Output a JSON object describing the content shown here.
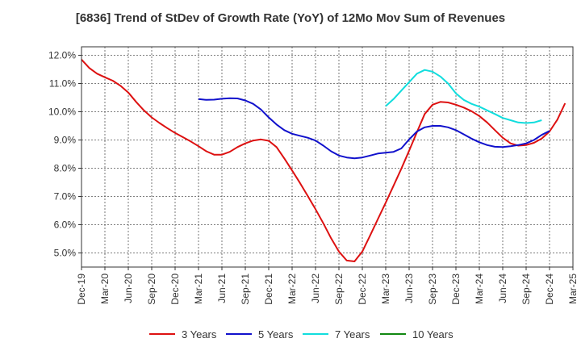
{
  "chart_data": {
    "type": "line",
    "title": "[6836]  Trend of StDev of Growth Rate (YoY) of 12Mo Mov Sum of Revenues",
    "xlabel": "",
    "ylabel": "",
    "ylim": [
      4.5,
      12.3
    ],
    "y_ticks": [
      5.0,
      6.0,
      7.0,
      8.0,
      9.0,
      10.0,
      11.0,
      12.0
    ],
    "y_tick_labels": [
      "5.0%",
      "6.0%",
      "7.0%",
      "8.0%",
      "9.0%",
      "10.0%",
      "11.0%",
      "12.0%"
    ],
    "x_tick_labels": [
      "Dec-19",
      "Mar-20",
      "Jun-20",
      "Sep-20",
      "Dec-20",
      "Mar-21",
      "Jun-21",
      "Sep-21",
      "Dec-21",
      "Mar-22",
      "Jun-22",
      "Sep-22",
      "Dec-22",
      "Mar-23",
      "Jun-23",
      "Sep-23",
      "Dec-23",
      "Mar-24",
      "Jun-24",
      "Sep-24",
      "Dec-24",
      "Mar-25"
    ],
    "x_months_total": 63,
    "grid": true,
    "legend_position": "bottom",
    "series": [
      {
        "name": "3 Years",
        "color": "#dd1111",
        "start_month": 0,
        "values": [
          11.85,
          11.55,
          11.35,
          11.22,
          11.1,
          10.92,
          10.68,
          10.35,
          10.05,
          9.8,
          9.6,
          9.42,
          9.25,
          9.1,
          8.95,
          8.78,
          8.6,
          8.48,
          8.48,
          8.58,
          8.75,
          8.88,
          8.98,
          9.02,
          8.97,
          8.75,
          8.35,
          7.92,
          7.48,
          7.02,
          6.55,
          6.05,
          5.52,
          5.05,
          4.73,
          4.7,
          5.05,
          5.62,
          6.2,
          6.78,
          7.38,
          7.98,
          8.62,
          9.28,
          9.92,
          10.25,
          10.35,
          10.33,
          10.25,
          10.15,
          10.02,
          9.85,
          9.62,
          9.35,
          9.08,
          8.88,
          8.8,
          8.82,
          8.9,
          9.05,
          9.3,
          9.72,
          10.3
        ]
      },
      {
        "name": "5 Years",
        "color": "#1111cc",
        "start_month": 15,
        "values": [
          10.45,
          10.42,
          10.43,
          10.46,
          10.48,
          10.47,
          10.4,
          10.28,
          10.08,
          9.8,
          9.55,
          9.35,
          9.22,
          9.15,
          9.08,
          8.98,
          8.8,
          8.6,
          8.45,
          8.38,
          8.35,
          8.38,
          8.45,
          8.52,
          8.55,
          8.58,
          8.7,
          9.02,
          9.3,
          9.45,
          9.5,
          9.5,
          9.45,
          9.35,
          9.2,
          9.05,
          8.92,
          8.82,
          8.76,
          8.75,
          8.78,
          8.82,
          8.88,
          9.0,
          9.18,
          9.32
        ]
      },
      {
        "name": "7 Years",
        "color": "#11dddd",
        "start_month": 39,
        "values": [
          10.2,
          10.45,
          10.75,
          11.05,
          11.35,
          11.48,
          11.42,
          11.25,
          11.0,
          10.65,
          10.42,
          10.28,
          10.18,
          10.05,
          9.92,
          9.78,
          9.7,
          9.62,
          9.6,
          9.62,
          9.7
        ]
      },
      {
        "name": "10 Years",
        "color": "#118811",
        "start_month": 0,
        "values": []
      }
    ]
  }
}
